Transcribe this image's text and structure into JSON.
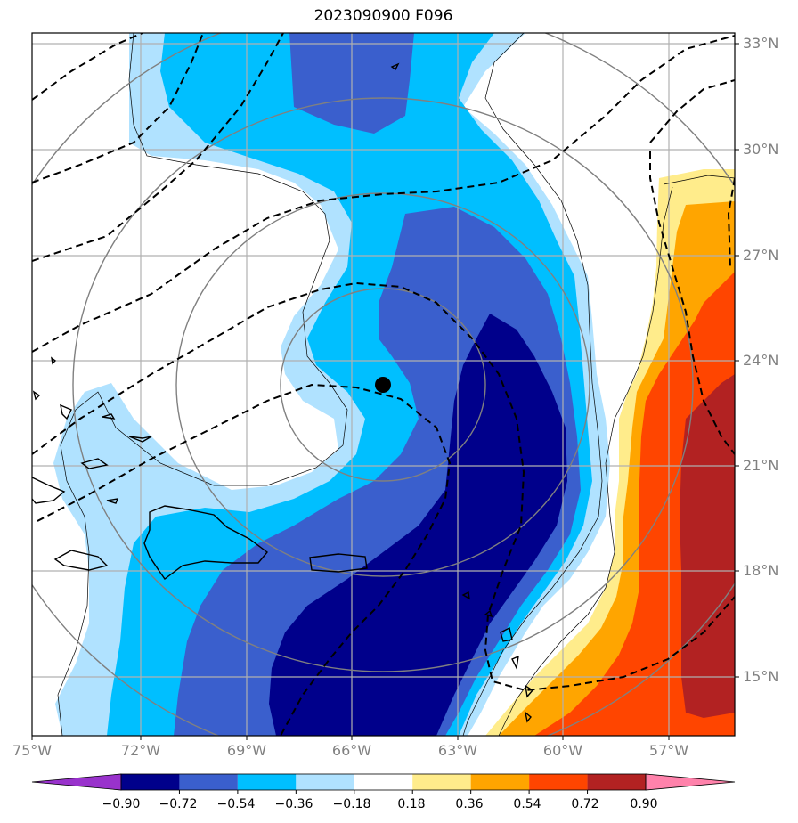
{
  "title": "2023090900 F096",
  "map": {
    "lon_labels": [
      "75°W",
      "72°W",
      "69°W",
      "66°W",
      "63°W",
      "60°W",
      "57°W"
    ],
    "lat_labels": [
      "33°N",
      "30°N",
      "27°N",
      "24°N",
      "21°N",
      "18°N",
      "15°N"
    ],
    "storm_center_icon": "filled-circle-marker"
  },
  "colorbar": {
    "ticks": [
      "−0.90",
      "−0.72",
      "−0.54",
      "−0.36",
      "−0.18",
      "0.18",
      "0.36",
      "0.54",
      "0.72",
      "0.90"
    ],
    "colors": [
      "#9932CC",
      "#00008B",
      "#3A5FCD",
      "#00BFFF",
      "#B0E2FF",
      "#FFFFFF",
      "#FFEC8B",
      "#FFA500",
      "#FF4500",
      "#B22222",
      "#FF82AB"
    ]
  }
}
